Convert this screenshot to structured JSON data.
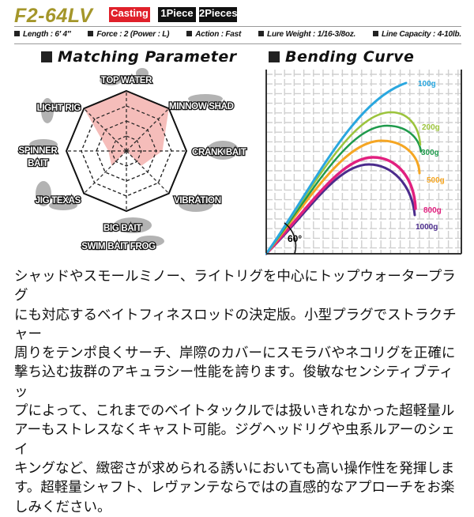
{
  "header": {
    "model": "F2-64LV",
    "badges": [
      {
        "label": "Casting",
        "color": "#e0202a"
      },
      {
        "label": "1Piece",
        "color": "#111111"
      },
      {
        "label": "2Pieces",
        "color": "#111111"
      }
    ],
    "specs": [
      "Length : 6′ 4″",
      "Force : 2 (Power : L)",
      "Action : Fast",
      "Lure Weight : 1/16-3/8oz.",
      "Line Capacity : 4-10lb."
    ]
  },
  "sections": {
    "matching": "Matching Parameter",
    "bending": "Bending Curve"
  },
  "chart_data": [
    {
      "type": "radar",
      "title": "Matching Parameter",
      "axes": [
        {
          "label": "TOP WATER",
          "value": 1.0
        },
        {
          "label": "MINNOW SHAD",
          "value": 1.0
        },
        {
          "label": "CRANK BAIT",
          "value": 0.6
        },
        {
          "label": "VIBRATION",
          "value": 0.35
        },
        {
          "label": "BIG BAIT\nSWIM BAIT  FROG",
          "value": 0.0
        },
        {
          "label": "JIG  TEXAS",
          "value": 0.35
        },
        {
          "label": "SPINNER\nBAIT",
          "value": 0.3
        },
        {
          "label": "LIGHT RIG",
          "value": 1.0
        }
      ],
      "range": [
        0,
        1
      ],
      "fill_color": "#f4b6b2",
      "grid": "dashed rings"
    },
    {
      "type": "line",
      "title": "Bending Curve",
      "angle_label": "60°",
      "grid": true,
      "series": [
        {
          "name": "100g",
          "color": "#2aa7df"
        },
        {
          "name": "200g",
          "color": "#9cc43c"
        },
        {
          "name": "300g",
          "color": "#1f9a4c"
        },
        {
          "name": "500g",
          "color": "#f5a623"
        },
        {
          "name": "800g",
          "color": "#e1207f"
        },
        {
          "name": "1000g",
          "color": "#4b2b8c"
        }
      ]
    }
  ],
  "description": [
    "シャッドやスモールミノー、ライトリグを中心にトップウォータープラグ",
    "にも対応するベイトフィネスロッドの決定版。小型プラグでストラクチャー",
    "周りをテンポ良くサーチ、岸際のカバーにスモラバやネコリグを正確に",
    "撃ち込む抜群のアキュラシー性能を誇ります。俊敏なセンシティブティッ",
    "プによって、これまでのベイトタックルでは扱いきれなかった超軽量ル",
    "アーもストレスなくキャスト可能。ジグヘッドリグや虫系ルアーのシェイ",
    "キングなど、緻密さが求められる誘いにおいても高い操作性を発揮しま",
    "す。超軽量シャフト、レヴァンテならではの直感的なアプローチをお楽",
    "しみください。"
  ]
}
